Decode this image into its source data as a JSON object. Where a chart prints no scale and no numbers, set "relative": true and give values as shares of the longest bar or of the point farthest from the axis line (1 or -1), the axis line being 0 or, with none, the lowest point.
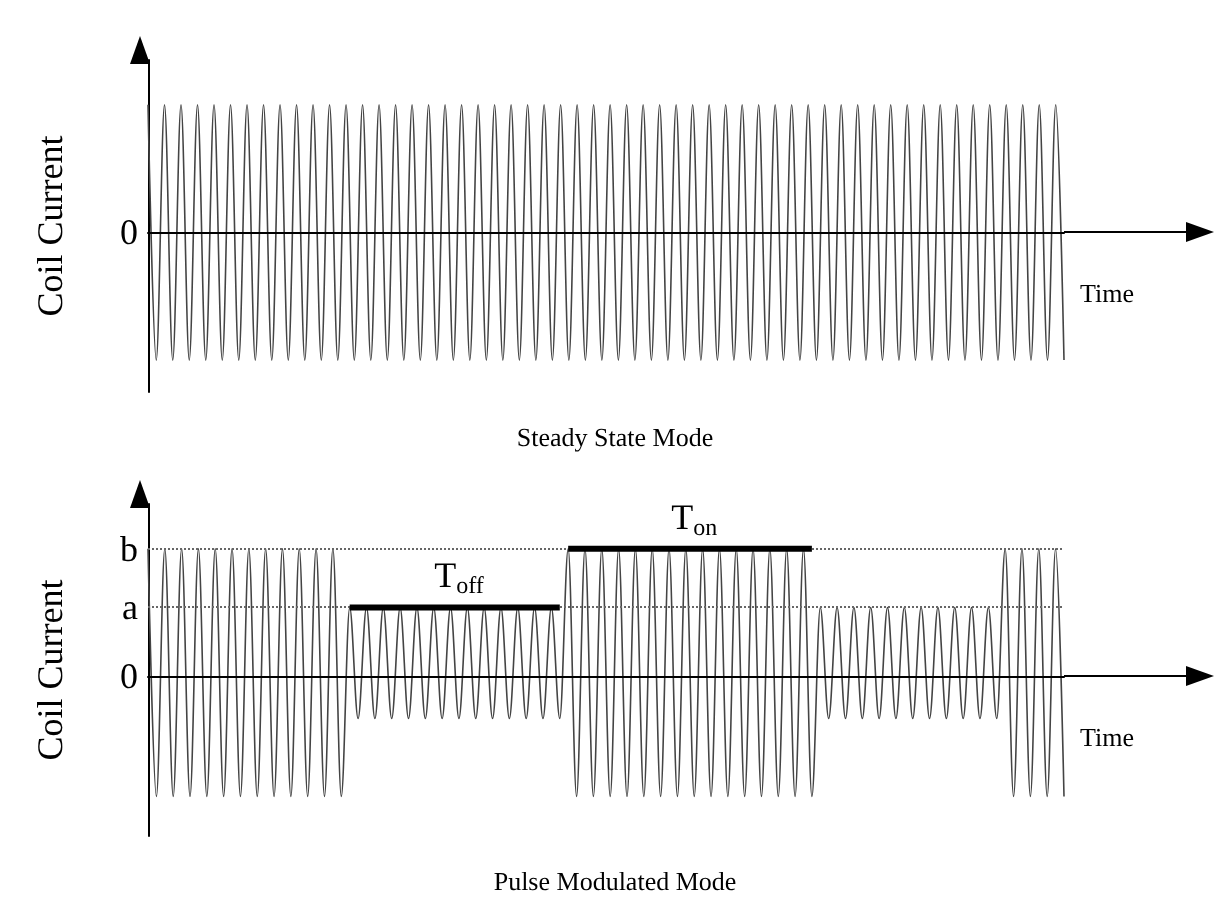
{
  "chart_data": [
    {
      "type": "line",
      "title": "Steady State Mode",
      "xlabel": "Time",
      "ylabel": "Coil Current",
      "relative": true,
      "legend": false,
      "categories": [
        null,
        null,
        null,
        null,
        null,
        null,
        null,
        null,
        null,
        null,
        null,
        null,
        null,
        null,
        null,
        null,
        null,
        null,
        null,
        null,
        null,
        null,
        null,
        null,
        null,
        null,
        null,
        null,
        null,
        null,
        null,
        null,
        null,
        null,
        null,
        null,
        null,
        null,
        null,
        null,
        null,
        null,
        null,
        null,
        null,
        null,
        null,
        null,
        null,
        null,
        null,
        null,
        null,
        null,
        null,
        null,
        null,
        null,
        null,
        null,
        null,
        null,
        null,
        null,
        null,
        null,
        null,
        null,
        null,
        null,
        null,
        null,
        null,
        null,
        null,
        null,
        null,
        null,
        null,
        null,
        null,
        null,
        null,
        null,
        null,
        null,
        null,
        null,
        null,
        null,
        null,
        null,
        null,
        null,
        null,
        null,
        null,
        null,
        null,
        null,
        null,
        null,
        null,
        null,
        null,
        null,
        null,
        null,
        null,
        null,
        null,
        null
      ],
      "series": [
        {
          "color": "#444444",
          "values": [
            1,
            -1,
            1,
            -1,
            1,
            -1,
            1,
            -1,
            1,
            -1,
            1,
            -1,
            1,
            -1,
            1,
            -1,
            1,
            -1,
            1,
            -1,
            1,
            -1,
            1,
            -1,
            1,
            -1,
            1,
            -1,
            1,
            -1,
            1,
            -1,
            1,
            -1,
            1,
            -1,
            1,
            -1,
            1,
            -1,
            1,
            -1,
            1,
            -1,
            1,
            -1,
            1,
            -1,
            1,
            -1,
            1,
            -1,
            1,
            -1,
            1,
            -1,
            1,
            -1,
            1,
            -1,
            1,
            -1,
            1,
            -1,
            1,
            -1,
            1,
            -1,
            1,
            -1,
            1,
            -1,
            1,
            -1,
            1,
            -1,
            1,
            -1,
            1,
            -1,
            1,
            -1,
            1,
            -1,
            1,
            -1,
            1,
            -1,
            1,
            -1,
            1,
            -1,
            1,
            -1,
            1,
            -1,
            1,
            -1,
            1,
            -1,
            1,
            -1,
            1,
            -1,
            1,
            -1,
            1,
            -1,
            1,
            -1,
            1,
            -1
          ]
        }
      ],
      "ref_lines": [
        {
          "axis": "y",
          "value": 0,
          "label": "0",
          "color": "#000000",
          "line_style": "solid"
        }
      ]
    },
    {
      "type": "line",
      "title": "Pulse Modulated Mode",
      "xlabel": "Time",
      "ylabel": "Coil Current",
      "relative": true,
      "legend": false,
      "categories": [
        null,
        null,
        null,
        null,
        null,
        null,
        null,
        null,
        null,
        null,
        null,
        null,
        null,
        null,
        null,
        null,
        null,
        null,
        null,
        null,
        null,
        null,
        null,
        null,
        null,
        null,
        null,
        null,
        null,
        null,
        null,
        null,
        null,
        null,
        null,
        null,
        null,
        null,
        null,
        null,
        null,
        null,
        null,
        null,
        null,
        null,
        null,
        null,
        null,
        null,
        null,
        null,
        null,
        null,
        null,
        null,
        null,
        null,
        null,
        null,
        null,
        null,
        null,
        null,
        null,
        null,
        null,
        null,
        null,
        null,
        null,
        null,
        null,
        null,
        null,
        null,
        null,
        null,
        null,
        null,
        null,
        null,
        null,
        null,
        null,
        null,
        null,
        null,
        null,
        null,
        null,
        null,
        null,
        null,
        null,
        null,
        null,
        null,
        null,
        null,
        null,
        null,
        null,
        null,
        null,
        null,
        null,
        null,
        null,
        null
      ],
      "series": [
        {
          "color": "#444444",
          "values": [
            1,
            -0.94,
            1,
            -0.94,
            1,
            -0.94,
            1,
            -0.94,
            1,
            -0.94,
            1,
            -0.94,
            1,
            -0.94,
            1,
            -0.94,
            1,
            -0.94,
            1,
            -0.94,
            1,
            -0.94,
            1,
            -0.94,
            0.54,
            -0.33,
            0.54,
            -0.33,
            0.54,
            -0.33,
            0.54,
            -0.33,
            0.54,
            -0.33,
            0.54,
            -0.33,
            0.54,
            -0.33,
            0.54,
            -0.33,
            0.54,
            -0.33,
            0.54,
            -0.33,
            0.54,
            -0.33,
            0.54,
            -0.33,
            0.54,
            -0.33,
            1,
            -0.94,
            1,
            -0.94,
            1,
            -0.94,
            1,
            -0.94,
            1,
            -0.94,
            1,
            -0.94,
            1,
            -0.94,
            1,
            -0.94,
            1,
            -0.94,
            1,
            -0.94,
            1,
            -0.94,
            1,
            -0.94,
            1,
            -0.94,
            1,
            -0.94,
            1,
            -0.94,
            0.54,
            -0.33,
            0.54,
            -0.33,
            0.54,
            -0.33,
            0.54,
            -0.33,
            0.54,
            -0.33,
            0.54,
            -0.33,
            0.54,
            -0.33,
            0.54,
            -0.33,
            0.54,
            -0.33,
            0.54,
            -0.33,
            0.54,
            -0.33,
            1,
            -0.94,
            1,
            -0.94,
            1,
            -0.94,
            1,
            -0.94
          ]
        },
        {
          "name": "T$_{off}$",
          "color": "#000000",
          "values": [
            null,
            null,
            null,
            null,
            null,
            null,
            null,
            null,
            null,
            null,
            null,
            null,
            null,
            null,
            null,
            null,
            null,
            null,
            null,
            null,
            null,
            null,
            null,
            null,
            0.54,
            0.54,
            0.54,
            0.54,
            0.54,
            0.54,
            0.54,
            0.54,
            0.54,
            0.54,
            0.54,
            0.54,
            0.54,
            0.54,
            0.54,
            0.54,
            0.54,
            0.54,
            0.54,
            0.54,
            0.54,
            0.54,
            0.54,
            0.54,
            0.54,
            0.54,
            null,
            null,
            null,
            null,
            null,
            null,
            null,
            null,
            null,
            null,
            null,
            null,
            null,
            null,
            null,
            null,
            null,
            null,
            null,
            null,
            null,
            null,
            null,
            null,
            null,
            null,
            null,
            null,
            null,
            null,
            null,
            null,
            null,
            null,
            null,
            null,
            null,
            null,
            null,
            null,
            null,
            null,
            null,
            null,
            null,
            null,
            null,
            null,
            null,
            null,
            null,
            null,
            null,
            null,
            null,
            null,
            null,
            null,
            null,
            null
          ]
        },
        {
          "name": "T$_{on}$",
          "color": "#000000",
          "values": [
            null,
            null,
            null,
            null,
            null,
            null,
            null,
            null,
            null,
            null,
            null,
            null,
            null,
            null,
            null,
            null,
            null,
            null,
            null,
            null,
            null,
            null,
            null,
            null,
            null,
            null,
            null,
            null,
            null,
            null,
            null,
            null,
            null,
            null,
            null,
            null,
            null,
            null,
            null,
            null,
            null,
            null,
            null,
            null,
            null,
            null,
            null,
            null,
            null,
            null,
            1,
            1,
            1,
            1,
            1,
            1,
            1,
            1,
            1,
            1,
            1,
            1,
            1,
            1,
            1,
            1,
            1,
            1,
            1,
            1,
            1,
            1,
            1,
            1,
            1,
            1,
            1,
            1,
            1,
            1,
            null,
            null,
            null,
            null,
            null,
            null,
            null,
            null,
            null,
            null,
            null,
            null,
            null,
            null,
            null,
            null,
            null,
            null,
            null,
            null,
            null,
            null,
            null,
            null,
            null,
            null,
            null,
            null,
            null,
            null
          ]
        }
      ],
      "ref_lines": [
        {
          "axis": "y",
          "value": 0,
          "label": "0",
          "color": "#000000",
          "line_style": "solid"
        },
        {
          "axis": "y",
          "value": 0.54,
          "label": "a",
          "color": "#666666",
          "line_style": "dotted"
        },
        {
          "axis": "y",
          "value": 1,
          "label": "b",
          "color": "#666666",
          "line_style": "dotted"
        }
      ]
    }
  ]
}
